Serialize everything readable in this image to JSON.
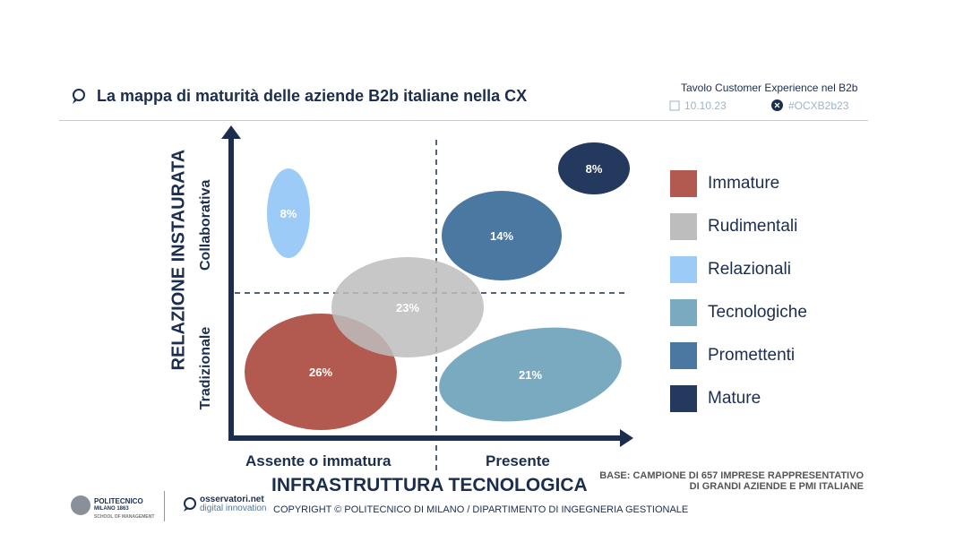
{
  "header": {
    "title": "La mappa di maturità delle aziende B2b italiane nella CX",
    "event": "Tavolo Customer Experience nel B2b",
    "date": "10.10.23",
    "hashtag": "#OCXB2b23"
  },
  "chart_data": {
    "type": "bubble-matrix",
    "xlabel": "INFRASTRUTTURA TECNOLOGICA",
    "x_categories": [
      "Assente o immatura",
      "Presente"
    ],
    "ylabel": "RELAZIONE INSTAURATA",
    "y_categories": [
      "Tradizionale",
      "Collaborativa"
    ],
    "series": [
      {
        "name": "Immature",
        "value": 26,
        "label": "26%",
        "color": "#b35a50"
      },
      {
        "name": "Rudimentali",
        "value": 23,
        "label": "23%",
        "color": "#bdbdbd"
      },
      {
        "name": "Relazionali",
        "value": 8,
        "label": "8%",
        "color": "#9ccbf7"
      },
      {
        "name": "Tecnologiche",
        "value": 21,
        "label": "21%",
        "color": "#7aaabf"
      },
      {
        "name": "Promettenti",
        "value": 14,
        "label": "14%",
        "color": "#4a78a0"
      },
      {
        "name": "Mature",
        "value": 8,
        "label": "8%",
        "color": "#233a5e"
      }
    ]
  },
  "footer": {
    "base_line1": "BASE: CAMPIONE DI 657 IMPRESE RAPPRESENTATIVO",
    "base_line2": "DI GRANDI AZIENDE E PMI ITALIANE",
    "copyright": "COPYRIGHT © POLITECNICO DI MILANO / DIPARTIMENTO DI INGEGNERIA GESTIONALE",
    "logo1": "POLITECNICO",
    "logo1_sub": "MILANO 1863",
    "logo1_sub2": "SCHOOL OF MANAGEMENT",
    "logo2": "osservatori.net",
    "logo2_sub": "digital innovation"
  }
}
